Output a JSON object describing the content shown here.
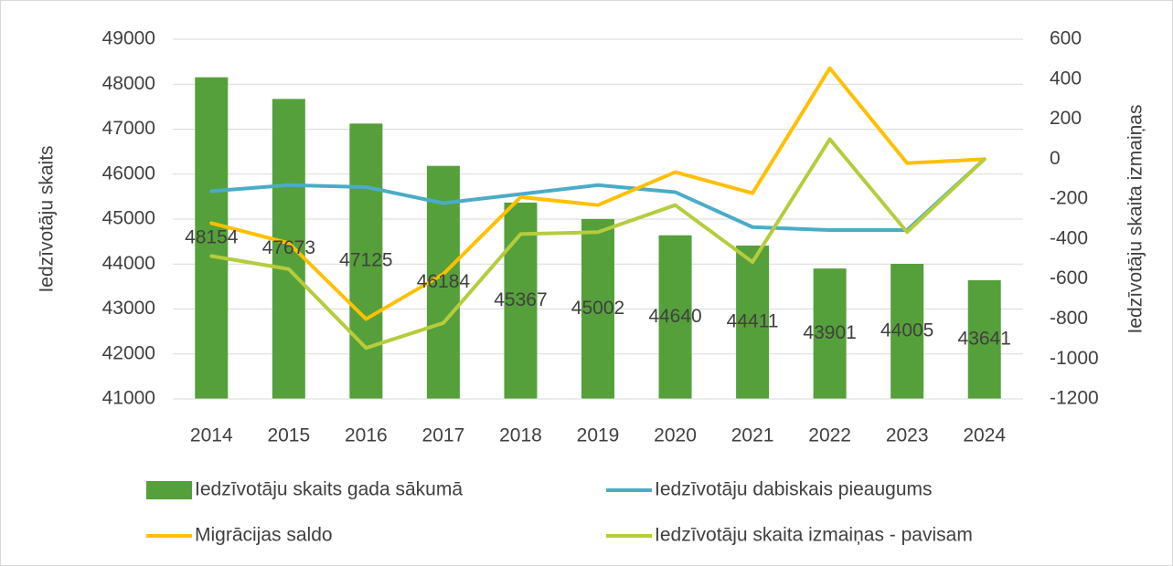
{
  "chart_data": {
    "type": "bar-line",
    "y_label": "Iedzīvotāju skaits",
    "y2_label": "Iedzīvotāju skaita izmaiņas",
    "categories": [
      "2014",
      "2015",
      "2016",
      "2017",
      "2018",
      "2019",
      "2020",
      "2021",
      "2022",
      "2023",
      "2024"
    ],
    "ylim": [
      41000,
      49000
    ],
    "yticks": [
      41000,
      42000,
      43000,
      44000,
      45000,
      46000,
      47000,
      48000,
      49000
    ],
    "y2lim": [
      -1200,
      600
    ],
    "y2ticks": [
      -1200,
      -1000,
      -800,
      -600,
      -400,
      -200,
      0,
      200,
      400,
      600
    ],
    "series": [
      {
        "name": "Iedzīvotāju skaits gada sākumā",
        "type": "bar",
        "color": "#55a03a",
        "axis": "y",
        "data_labels": true,
        "values": [
          48154,
          47673,
          47125,
          46184,
          45367,
          45002,
          44640,
          44411,
          43901,
          44005,
          43641
        ]
      },
      {
        "name": "Iedzīvotāju dabiskais pieaugums",
        "type": "line",
        "color": "#4bacc6",
        "axis": "y2",
        "values": [
          -160,
          -130,
          -140,
          -220,
          -175,
          -130,
          -165,
          -340,
          -355,
          -355,
          0
        ]
      },
      {
        "name": "Migrācijas saldo",
        "type": "line",
        "color": "#ffc000",
        "axis": "y2",
        "values": [
          -320,
          -420,
          -800,
          -575,
          -190,
          -230,
          -65,
          -170,
          455,
          -20,
          0
        ]
      },
      {
        "name": "Iedzīvotāju skaita izmaiņas - pavisam",
        "type": "line",
        "color": "#b6cc3c",
        "axis": "y2",
        "values": [
          -485,
          -550,
          -945,
          -820,
          -375,
          -365,
          -230,
          -515,
          100,
          -365,
          0
        ]
      }
    ]
  }
}
